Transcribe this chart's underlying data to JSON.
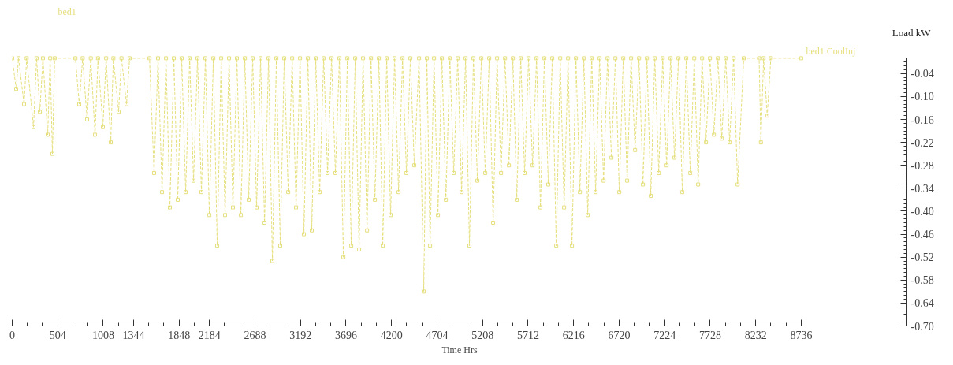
{
  "chart_data": {
    "type": "line",
    "title": "bed1",
    "xlabel": "Time Hrs",
    "ylabel": "Load kW",
    "xlim": [
      0,
      8736
    ],
    "xticks": [
      0,
      504,
      1008,
      1344,
      1848,
      2184,
      2688,
      3192,
      3696,
      4200,
      4704,
      5208,
      5712,
      6216,
      6720,
      7224,
      7728,
      8232,
      8736
    ],
    "ylim": [
      -0.7,
      0
    ],
    "yticks": [
      {
        "value": -0.04,
        "label": "-0.04"
      },
      {
        "value": -0.1,
        "label": "-0.10"
      },
      {
        "value": -0.16,
        "label": "-0.16"
      },
      {
        "value": -0.22,
        "label": "-0.22"
      },
      {
        "value": -0.28,
        "label": "-0.28"
      },
      {
        "value": -0.34,
        "label": "-0.34"
      },
      {
        "value": -0.4,
        "label": "-0.40"
      },
      {
        "value": -0.46,
        "label": "-0.46"
      },
      {
        "value": -0.52,
        "label": "-0.52"
      },
      {
        "value": -0.58,
        "label": "-0.58"
      },
      {
        "value": -0.64,
        "label": "-0.64"
      },
      {
        "value": -0.7,
        "label": "-0.70"
      }
    ],
    "grid": false,
    "marker": "square",
    "line_style": "dashed",
    "series": [
      {
        "name": "bed1 CoolInj",
        "color": "#e6df7e",
        "x": [
          0,
          44,
          70,
          131,
          160,
          236,
          270,
          306,
          340,
          393,
          420,
          445,
          470,
          700,
          742,
          780,
          829,
          870,
          917,
          950,
          1004,
          1040,
          1091,
          1120,
          1178,
          1210,
          1266,
          1300,
          1520,
          1571,
          1615,
          1659,
          1703,
          1746,
          1790,
          1833,
          1877,
          1921,
          1965,
          2008,
          2052,
          2095,
          2139,
          2183,
          2227,
          2270,
          2314,
          2357,
          2401,
          2444,
          2488,
          2532,
          2576,
          2619,
          2663,
          2706,
          2750,
          2794,
          2838,
          2881,
          2925,
          2968,
          3012,
          3056,
          3100,
          3143,
          3187,
          3230,
          3274,
          3317,
          3361,
          3405,
          3449,
          3492,
          3536,
          3579,
          3623,
          3667,
          3711,
          3754,
          3798,
          3841,
          3885,
          3929,
          3973,
          4016,
          4060,
          4103,
          4147,
          4190,
          4234,
          4278,
          4322,
          4365,
          4409,
          4452,
          4505,
          4557,
          4592,
          4627,
          4671,
          4714,
          4758,
          4802,
          4846,
          4889,
          4933,
          4976,
          5020,
          5063,
          5107,
          5151,
          5195,
          5238,
          5282,
          5325,
          5369,
          5413,
          5457,
          5500,
          5544,
          5587,
          5631,
          5674,
          5718,
          5762,
          5806,
          5849,
          5893,
          5936,
          5980,
          6024,
          6068,
          6111,
          6155,
          6198,
          6242,
          6286,
          6330,
          6373,
          6417,
          6460,
          6504,
          6548,
          6592,
          6635,
          6679,
          6722,
          6766,
          6809,
          6853,
          6897,
          6941,
          6984,
          7028,
          7071,
          7115,
          7159,
          7203,
          7246,
          7290,
          7333,
          7377,
          7420,
          7464,
          7508,
          7552,
          7595,
          7639,
          7682,
          7726,
          7770,
          7814,
          7857,
          7901,
          7944,
          7988,
          8032,
          8100,
          8270,
          8290,
          8320,
          8360,
          8400,
          8736
        ],
        "values": [
          0,
          -0.08,
          0,
          -0.12,
          0,
          -0.18,
          0,
          -0.14,
          0,
          -0.2,
          0,
          -0.25,
          0,
          0,
          -0.12,
          0,
          -0.16,
          0,
          -0.2,
          0,
          -0.18,
          0,
          -0.22,
          0,
          -0.14,
          0,
          -0.12,
          0,
          0,
          -0.3,
          0,
          -0.35,
          0,
          -0.39,
          0,
          -0.37,
          0,
          -0.35,
          0,
          -0.32,
          0,
          -0.35,
          0,
          -0.41,
          0,
          -0.49,
          0,
          -0.41,
          0,
          -0.39,
          0,
          -0.41,
          0,
          -0.37,
          0,
          -0.39,
          0,
          -0.43,
          0,
          -0.53,
          0,
          -0.49,
          0,
          -0.35,
          0,
          -0.39,
          0,
          -0.46,
          0,
          -0.45,
          0,
          -0.35,
          0,
          -0.3,
          0,
          -0.3,
          0,
          -0.52,
          0,
          -0.49,
          0,
          -0.5,
          0,
          -0.45,
          0,
          -0.37,
          0,
          -0.49,
          0,
          -0.41,
          0,
          -0.35,
          0,
          -0.3,
          0,
          -0.28,
          0,
          -0.61,
          0,
          -0.49,
          0,
          -0.41,
          0,
          -0.37,
          0,
          -0.3,
          0,
          -0.35,
          0,
          -0.49,
          0,
          -0.32,
          0,
          -0.3,
          0,
          -0.43,
          0,
          -0.3,
          0,
          -0.28,
          0,
          -0.37,
          0,
          -0.3,
          0,
          -0.28,
          0,
          -0.39,
          0,
          -0.33,
          0,
          -0.49,
          0,
          -0.39,
          0,
          -0.49,
          0,
          -0.35,
          0,
          -0.41,
          0,
          -0.35,
          0,
          -0.32,
          0,
          -0.26,
          0,
          -0.35,
          0,
          -0.32,
          0,
          -0.24,
          0,
          -0.33,
          0,
          -0.36,
          0,
          -0.3,
          0,
          -0.28,
          0,
          -0.26,
          0,
          -0.35,
          0,
          -0.3,
          0,
          -0.33,
          0,
          -0.22,
          0,
          -0.2,
          0,
          -0.21,
          0,
          -0.22,
          0,
          -0.33,
          0,
          0,
          -0.22,
          0,
          -0.15,
          0,
          0
        ]
      }
    ]
  }
}
